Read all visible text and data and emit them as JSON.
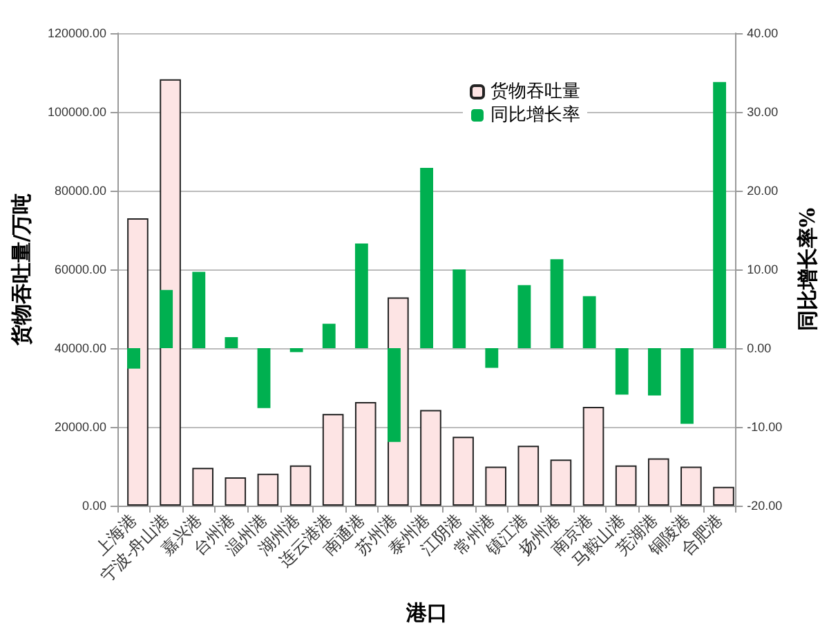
{
  "chart_data": {
    "type": "bar",
    "xlabel": "港口",
    "ylabel": "货物吞吐量/万吨",
    "y2label": "同比增长率%",
    "categories": [
      "上海港",
      "宁波-舟山港",
      "嘉兴港",
      "台州港",
      "温州港",
      "湖州港",
      "连云港港",
      "南通港",
      "苏州港",
      "泰州港",
      "江阴港",
      "常州港",
      "镇江港",
      "扬州港",
      "南京港",
      "马鞍山港",
      "芜湖港",
      "铜陵港",
      "合肥港"
    ],
    "series": [
      {
        "name": "货物吞吐量",
        "color": "#fde4e4",
        "values": [
          73000,
          108300,
          9600,
          7200,
          8100,
          10200,
          23300,
          26300,
          52900,
          24300,
          17500,
          9900,
          15200,
          11700,
          25100,
          10200,
          12000,
          9900,
          4800
        ]
      },
      {
        "name": "同比增长率",
        "color": "#00b050",
        "axis": "y2",
        "values": [
          -2.6,
          7.4,
          9.7,
          1.4,
          -7.6,
          -0.5,
          3.1,
          13.3,
          -11.9,
          22.9,
          10.0,
          -2.5,
          8.0,
          11.3,
          6.6,
          -5.9,
          -6.0,
          -9.6,
          33.8
        ]
      }
    ],
    "ylim": [
      0,
      120000
    ],
    "yticks": [
      {
        "value": 0,
        "label": "0.00"
      },
      {
        "value": 20000,
        "label": "20000.00"
      },
      {
        "value": 40000,
        "label": "40000.00"
      },
      {
        "value": 60000,
        "label": "60000.00"
      },
      {
        "value": 80000,
        "label": "80000.00"
      },
      {
        "value": 100000,
        "label": "100000.00"
      },
      {
        "value": 120000,
        "label": "120000.00"
      }
    ],
    "y2lim": [
      -20,
      40
    ],
    "y2ticks": [
      {
        "value": -20,
        "label": "-20.00"
      },
      {
        "value": -10,
        "label": "-10.00"
      },
      {
        "value": 0,
        "label": "0.00"
      },
      {
        "value": 10,
        "label": "10.00"
      },
      {
        "value": 20,
        "label": "20.00"
      },
      {
        "value": 30,
        "label": "30.00"
      },
      {
        "value": 40,
        "label": "40.00"
      }
    ],
    "grid": "y",
    "legend": "top right"
  }
}
